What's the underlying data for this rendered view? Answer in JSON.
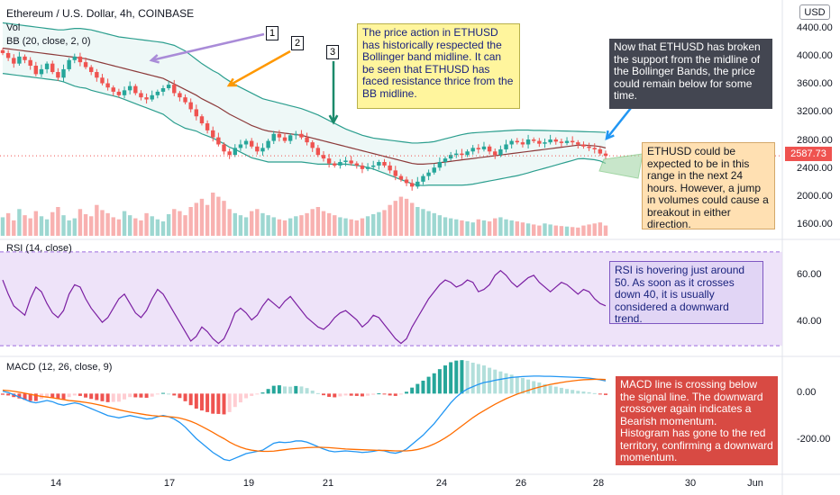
{
  "header": {
    "title": "Ethereum / U.S. Dollar, 4h, COINBASE",
    "vol_label": "Vol",
    "bb_label": "BB (20, close, 2, 0)",
    "currency": "USD"
  },
  "price_badge": "2587.73",
  "annotations": {
    "markers": [
      "1",
      "2",
      "3"
    ],
    "note_bb": "The price action in ETHUSD has historically respected the Bollinger band midline. It can be seen that ETHUSD has faced resistance thrice from the BB midline.",
    "note_break": "Now that ETHUSD has broken the support from the midline of the Bollinger Bands, the price could remain below for some time.",
    "note_range": "ETHUSD could be expected to be in this range in the next 24 hours. However, a jump in volumes could cause a breakout in either direction.",
    "note_rsi": "RSI is hovering just around 50. As soon as it crosses down 40, it is usually considered a downward trend.",
    "note_macd": "MACD line is crossing below the signal line. The downward crossover again indicates a Bearish momentum.\nHistogram has gone to the red territory, confirming a downward momentum."
  },
  "colors": {
    "up": "#26a69a",
    "down": "#ef5350",
    "bb_band": "#2b9e8e",
    "bb_mid": "#8c3a3a",
    "rsi": "#7b1fa2",
    "macd": "#2196f3",
    "signal": "#ff6d00"
  },
  "chart_data": [
    {
      "type": "candlestick",
      "title": "Ethereum / U.S. Dollar, 4h, COINBASE",
      "x_ticks": [
        "14",
        "17",
        "19",
        "21",
        "24",
        "26",
        "28",
        "30",
        "Jun"
      ],
      "y_ticks": [
        4400,
        4000,
        3600,
        3200,
        2800,
        2400,
        2000,
        1600
      ],
      "ylim": [
        1450,
        4600
      ],
      "last_price": 2587.73,
      "close": [
        4050,
        3980,
        3900,
        4000,
        3950,
        3870,
        3750,
        3820,
        3900,
        3780,
        3700,
        3820,
        3950,
        4000,
        3920,
        3850,
        3780,
        3700,
        3620,
        3560,
        3500,
        3450,
        3520,
        3580,
        3480,
        3420,
        3390,
        3450,
        3500,
        3550,
        3600,
        3480,
        3420,
        3350,
        3250,
        3150,
        3050,
        2950,
        2850,
        2750,
        2650,
        2600,
        2700,
        2750,
        2800,
        2720,
        2650,
        2700,
        2800,
        2900,
        2850,
        2800,
        2880,
        2900,
        2850,
        2780,
        2700,
        2600,
        2550,
        2480,
        2450,
        2500,
        2520,
        2480,
        2450,
        2400,
        2430,
        2450,
        2500,
        2450,
        2380,
        2300,
        2250,
        2200,
        2150,
        2220,
        2300,
        2350,
        2420,
        2500,
        2550,
        2600,
        2620,
        2600,
        2650,
        2700,
        2680,
        2720,
        2650,
        2600,
        2680,
        2750,
        2800,
        2780,
        2750,
        2820,
        2800,
        2760,
        2780,
        2820,
        2790,
        2770,
        2800,
        2780,
        2750,
        2720,
        2700,
        2680,
        2620,
        2587.73
      ],
      "bb_upper": [
        4480,
        4470,
        4460,
        4450,
        4440,
        4430,
        4420,
        4410,
        4400,
        4390,
        4380,
        4380,
        4390,
        4400,
        4400,
        4390,
        4380,
        4360,
        4340,
        4320,
        4300,
        4280,
        4270,
        4260,
        4250,
        4240,
        4230,
        4220,
        4210,
        4200,
        4180,
        4160,
        4120,
        4080,
        4020,
        3960,
        3900,
        3850,
        3800,
        3760,
        3700,
        3650,
        3600,
        3560,
        3520,
        3480,
        3440,
        3400,
        3380,
        3360,
        3340,
        3320,
        3300,
        3280,
        3260,
        3230,
        3200,
        3170,
        3130,
        3090,
        3050,
        3010,
        2970,
        2940,
        2910,
        2880,
        2860,
        2840,
        2830,
        2820,
        2810,
        2800,
        2790,
        2780,
        2770,
        2770,
        2775,
        2780,
        2790,
        2810,
        2830,
        2850,
        2870,
        2890,
        2905,
        2915,
        2920,
        2925,
        2930,
        2935,
        2940,
        2945,
        2950,
        2955,
        2955,
        2955,
        2950,
        2950,
        2948,
        2946,
        2944,
        2942,
        2940,
        2938,
        2935,
        2932,
        2930,
        2928,
        2925,
        2920
      ],
      "bb_mid": [
        4120,
        4110,
        4100,
        4090,
        4080,
        4070,
        4060,
        4050,
        4040,
        4030,
        4020,
        4010,
        4000,
        3990,
        3980,
        3970,
        3950,
        3930,
        3910,
        3890,
        3870,
        3850,
        3830,
        3810,
        3790,
        3770,
        3750,
        3730,
        3710,
        3690,
        3650,
        3610,
        3570,
        3530,
        3490,
        3450,
        3400,
        3360,
        3320,
        3280,
        3230,
        3180,
        3140,
        3100,
        3060,
        3020,
        2990,
        2960,
        2940,
        2930,
        2920,
        2910,
        2900,
        2890,
        2880,
        2860,
        2840,
        2820,
        2800,
        2780,
        2760,
        2740,
        2720,
        2700,
        2680,
        2660,
        2640,
        2620,
        2600,
        2580,
        2560,
        2540,
        2520,
        2500,
        2480,
        2470,
        2470,
        2475,
        2480,
        2490,
        2500,
        2510,
        2520,
        2530,
        2540,
        2550,
        2560,
        2570,
        2580,
        2590,
        2600,
        2610,
        2620,
        2630,
        2640,
        2650,
        2660,
        2670,
        2680,
        2690,
        2700,
        2710,
        2720,
        2730,
        2740,
        2740,
        2735,
        2730,
        2720,
        2700
      ],
      "bb_lower": [
        3760,
        3750,
        3740,
        3730,
        3720,
        3710,
        3700,
        3690,
        3680,
        3670,
        3660,
        3640,
        3610,
        3580,
        3560,
        3550,
        3520,
        3500,
        3480,
        3460,
        3440,
        3420,
        3390,
        3360,
        3330,
        3300,
        3270,
        3240,
        3210,
        3180,
        3120,
        3060,
        3020,
        2980,
        2960,
        2940,
        2900,
        2870,
        2840,
        2800,
        2760,
        2710,
        2680,
        2640,
        2600,
        2560,
        2540,
        2520,
        2500,
        2500,
        2500,
        2500,
        2500,
        2500,
        2500,
        2490,
        2480,
        2470,
        2470,
        2470,
        2470,
        2470,
        2470,
        2460,
        2450,
        2440,
        2420,
        2400,
        2370,
        2340,
        2310,
        2280,
        2250,
        2220,
        2190,
        2170,
        2165,
        2170,
        2170,
        2170,
        2170,
        2170,
        2170,
        2170,
        2175,
        2185,
        2200,
        2215,
        2230,
        2245,
        2260,
        2275,
        2290,
        2305,
        2325,
        2345,
        2370,
        2390,
        2412,
        2434,
        2456,
        2478,
        2500,
        2522,
        2545,
        2548,
        2540,
        2532,
        2515,
        2480
      ],
      "volume": [
        180,
        220,
        150,
        260,
        200,
        170,
        240,
        190,
        160,
        230,
        280,
        200,
        150,
        170,
        260,
        210,
        190,
        300,
        250,
        220,
        180,
        160,
        240,
        200,
        170,
        150,
        220,
        190,
        160,
        140,
        210,
        260,
        240,
        200,
        280,
        320,
        360,
        300,
        420,
        380,
        340,
        260,
        220,
        200,
        180,
        240,
        260,
        220,
        200,
        180,
        160,
        150,
        170,
        190,
        200,
        220,
        260,
        280,
        240,
        220,
        200,
        180,
        170,
        160,
        150,
        170,
        190,
        210,
        230,
        250,
        300,
        340,
        380,
        360,
        320,
        280,
        260,
        240,
        220,
        200,
        180,
        170,
        160,
        150,
        140,
        130,
        160,
        150,
        140,
        170,
        180,
        160,
        150,
        140,
        130,
        120,
        110,
        100,
        120,
        110,
        100,
        95,
        90,
        85,
        80,
        100,
        110,
        120,
        130,
        100
      ]
    },
    {
      "type": "line",
      "title": "RSI (14, close)",
      "y_ticks": [
        60,
        40
      ],
      "ylim": [
        27,
        73
      ],
      "band": [
        70,
        30
      ],
      "values": [
        58,
        52,
        47,
        45,
        43,
        50,
        55,
        53,
        48,
        44,
        42,
        45,
        52,
        56,
        55,
        50,
        46,
        43,
        40,
        42,
        46,
        50,
        52,
        48,
        44,
        42,
        45,
        50,
        54,
        52,
        48,
        44,
        40,
        36,
        32,
        34,
        38,
        36,
        33,
        31,
        33,
        38,
        44,
        46,
        44,
        41,
        43,
        47,
        50,
        48,
        46,
        49,
        51,
        48,
        45,
        42,
        40,
        38,
        37,
        39,
        42,
        44,
        45,
        43,
        41,
        38,
        40,
        43,
        42,
        39,
        36,
        33,
        31,
        33,
        38,
        42,
        46,
        50,
        53,
        56,
        58,
        57,
        55,
        56,
        58,
        57,
        53,
        54,
        56,
        60,
        62,
        60,
        57,
        55,
        57,
        59,
        60,
        57,
        55,
        53,
        55,
        57,
        56,
        54,
        52,
        54,
        53,
        50,
        48,
        47
      ]
    },
    {
      "type": "line",
      "title": "MACD (12, 26, close, 9)",
      "y_ticks": [
        0,
        -200
      ],
      "ylim": [
        -330,
        130
      ],
      "macd": [
        10,
        5,
        -5,
        -15,
        -25,
        -35,
        -40,
        -35,
        -30,
        -35,
        -45,
        -50,
        -45,
        -40,
        -45,
        -55,
        -65,
        -75,
        -85,
        -95,
        -100,
        -105,
        -100,
        -95,
        -100,
        -105,
        -110,
        -108,
        -100,
        -95,
        -100,
        -110,
        -125,
        -145,
        -170,
        -195,
        -215,
        -235,
        -255,
        -270,
        -285,
        -290,
        -280,
        -270,
        -260,
        -255,
        -250,
        -245,
        -230,
        -215,
        -210,
        -212,
        -210,
        -205,
        -205,
        -210,
        -220,
        -230,
        -240,
        -248,
        -252,
        -250,
        -248,
        -250,
        -252,
        -255,
        -253,
        -250,
        -245,
        -248,
        -255,
        -258,
        -252,
        -240,
        -220,
        -200,
        -180,
        -155,
        -130,
        -100,
        -70,
        -40,
        -15,
        5,
        20,
        30,
        40,
        48,
        52,
        58,
        62,
        66,
        70,
        72,
        74,
        75,
        76,
        76,
        75,
        75,
        74,
        73,
        72,
        71,
        70,
        69,
        67,
        64,
        60,
        55
      ],
      "signal": [
        15,
        13,
        10,
        6,
        2,
        -3,
        -8,
        -12,
        -15,
        -18,
        -22,
        -26,
        -30,
        -32,
        -35,
        -38,
        -42,
        -47,
        -52,
        -58,
        -64,
        -70,
        -75,
        -80,
        -84,
        -88,
        -92,
        -95,
        -97,
        -98,
        -100,
        -102,
        -106,
        -112,
        -120,
        -130,
        -142,
        -155,
        -168,
        -182,
        -195,
        -210,
        -222,
        -232,
        -240,
        -245,
        -248,
        -250,
        -250,
        -249,
        -246,
        -243,
        -240,
        -238,
        -236,
        -234,
        -233,
        -232,
        -233,
        -234,
        -236,
        -238,
        -240,
        -241,
        -242,
        -243,
        -244,
        -245,
        -246,
        -246,
        -247,
        -248,
        -248,
        -248,
        -246,
        -242,
        -236,
        -228,
        -218,
        -206,
        -192,
        -176,
        -158,
        -140,
        -122,
        -104,
        -88,
        -74,
        -60,
        -46,
        -34,
        -22,
        -12,
        -2,
        6,
        14,
        22,
        28,
        34,
        40,
        44,
        48,
        52,
        55,
        58,
        60,
        61,
        62,
        62,
        61
      ],
      "histogram": [
        -5,
        -8,
        -15,
        -21,
        -27,
        -32,
        -32,
        -23,
        -15,
        -17,
        -23,
        -24,
        -15,
        -8,
        -10,
        -17,
        -23,
        -28,
        -33,
        -37,
        -36,
        -35,
        -25,
        -15,
        -16,
        -17,
        -18,
        -13,
        -3,
        3,
        0,
        -8,
        -19,
        -33,
        -50,
        -65,
        -73,
        -80,
        -87,
        -88,
        -90,
        -80,
        -58,
        -38,
        -20,
        -10,
        -2,
        5,
        20,
        34,
        36,
        31,
        30,
        33,
        31,
        24,
        13,
        2,
        -7,
        -14,
        -16,
        -12,
        -8,
        -9,
        -10,
        -12,
        -9,
        -5,
        1,
        -2,
        -8,
        -10,
        -4,
        8,
        26,
        42,
        56,
        73,
        88,
        106,
        122,
        136,
        143,
        145,
        142,
        134,
        128,
        122,
        112,
        104,
        96,
        88,
        82,
        74,
        68,
        61,
        54,
        48,
        41,
        35,
        30,
        25,
        20,
        16,
        12,
        9,
        6,
        2,
        -2,
        -6
      ]
    }
  ]
}
